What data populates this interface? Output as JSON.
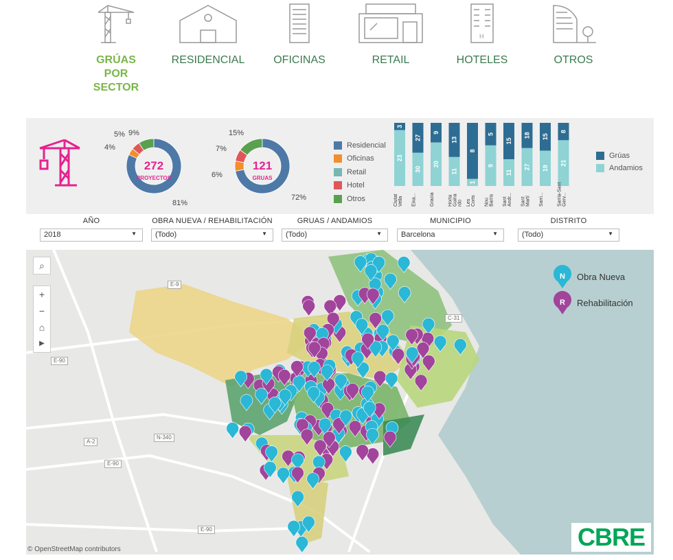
{
  "nav": {
    "items": [
      {
        "label": "GRÚAS\nPOR\nSECTOR",
        "icon": "crane-icon",
        "active": true
      },
      {
        "label": "RESIDENCIAL",
        "icon": "house-icon"
      },
      {
        "label": "OFICINAS",
        "icon": "office-building-icon"
      },
      {
        "label": "RETAIL",
        "icon": "storefront-icon"
      },
      {
        "label": "HOTELES",
        "icon": "hotel-icon"
      },
      {
        "label": "OTROS",
        "icon": "other-buildings-icon"
      }
    ]
  },
  "kpi": {
    "proyectos": {
      "value": "272",
      "label": "PROYECTOS",
      "pcts": [
        "5%",
        "9%",
        "4%",
        "81%"
      ]
    },
    "gruas": {
      "value": "121",
      "label": "GRUAS",
      "pcts": [
        "15%",
        "7%",
        "6%",
        "72%"
      ]
    }
  },
  "colors": {
    "residencial": "#4e79a7",
    "oficinas": "#f28e2b",
    "retail": "#76b7b2",
    "hotel": "#e15759",
    "otros": "#59a14f",
    "accent": "#e6228f",
    "gruas_bar": "#2e6d93",
    "andamios_bar": "#8fd3d4",
    "obra_nueva": "#2bb7d6",
    "rehabilitacion": "#a1449b"
  },
  "legend_sector": [
    "Residencial",
    "Oficinas",
    "Retail",
    "Hotel",
    "Otros"
  ],
  "legend_bars": [
    "Grúas",
    "Andamios"
  ],
  "chart_data": [
    {
      "type": "pie",
      "title": "",
      "labels": [
        "Residencial",
        "Oficinas",
        "Retail",
        "Hotel",
        "Otros"
      ],
      "values": [
        81,
        4,
        0,
        5,
        9
      ]
    },
    {
      "type": "pie",
      "title": "",
      "labels": [
        "Residencial",
        "Oficinas",
        "Retail",
        "Hotel",
        "Otros"
      ],
      "values": [
        72,
        6,
        0,
        7,
        15
      ]
    },
    {
      "type": "bar",
      "stacked": true,
      "categories": [
        "Ciutat Vella",
        "Eixa...",
        "Gracia",
        "Horta Guina rdo",
        "Les Corts",
        "Nou Barris",
        "Sant Andr...",
        "Sant Martí",
        "Sarri...",
        "Sarria-Sant Gerv..."
      ],
      "series": [
        {
          "name": "Grúas",
          "values": [
            3,
            27,
            9,
            13,
            8,
            5,
            15,
            18,
            15,
            8
          ]
        },
        {
          "name": "Andamios",
          "values": [
            23,
            30,
            20,
            11,
            1,
            9,
            11,
            27,
            19,
            21
          ]
        }
      ]
    }
  ],
  "filters": [
    {
      "label": "AÑO",
      "value": "2018"
    },
    {
      "label": "OBRA NUEVA / REHABILITACIÓN",
      "value": "(Todo)"
    },
    {
      "label": "GRUAS / ANDAMIOS",
      "value": "(Todo)"
    },
    {
      "label": "MUNICIPIO",
      "value": "Barcelona"
    },
    {
      "label": "DISTRITO",
      "value": "(Todo)"
    }
  ],
  "map": {
    "legend": [
      "Obra Nueva",
      "Rehabilitación"
    ],
    "attribution": "© OpenStreetMap contributors",
    "road_labels": [
      "E-9",
      "E-90",
      "C-31",
      "N-340",
      "A-2",
      "E-90",
      "E-90"
    ],
    "logo": "CBRE"
  }
}
